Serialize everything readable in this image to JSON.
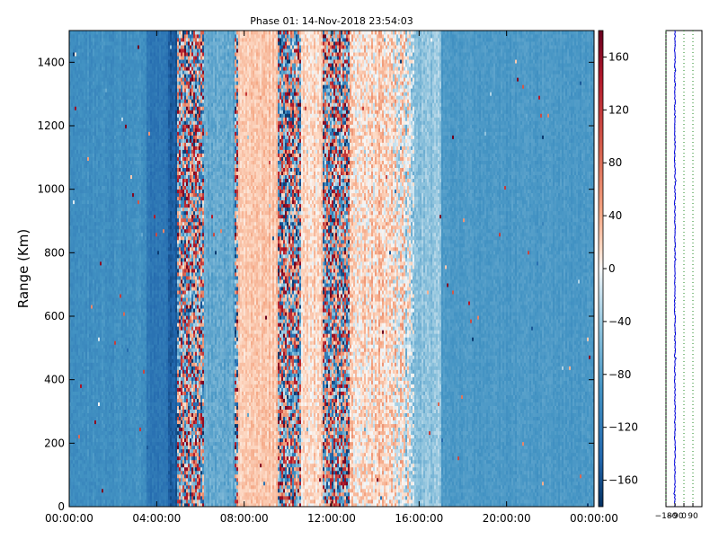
{
  "chart_data": [
    {
      "type": "heatmap",
      "title": "Phase 01: 14-Nov-2018 23:54:03",
      "xlabel": "",
      "ylabel": "Range (Km)",
      "x_ticks": [
        "00:00:00",
        "04:00:00",
        "08:00:00",
        "12:00:00",
        "16:00:00",
        "20:00:00",
        "00:00:00"
      ],
      "x_tick_hours": [
        0,
        4,
        8,
        12,
        16,
        20,
        24
      ],
      "xlim_hours": [
        0,
        24
      ],
      "y_ticks": [
        0,
        200,
        400,
        600,
        800,
        1000,
        1200,
        1400
      ],
      "ylim": [
        0,
        1500
      ],
      "colormap": "RdBu_r",
      "colorbar": {
        "ticks": [
          -160,
          -120,
          -80,
          -40,
          0,
          40,
          80,
          120,
          160
        ],
        "range": [
          -180,
          180
        ]
      },
      "phase_profile_hours": [
        {
          "from": 0,
          "to": 3.5,
          "mean": -95,
          "spread": 18
        },
        {
          "from": 3.5,
          "to": 4.5,
          "mean": -125,
          "spread": 18
        },
        {
          "from": 4.5,
          "to": 4.9,
          "mean": -150,
          "spread": 20
        },
        {
          "from": 4.9,
          "to": 6.2,
          "mean": 0,
          "spread": 175
        },
        {
          "from": 6.2,
          "to": 7.6,
          "mean": -70,
          "spread": 25
        },
        {
          "from": 7.6,
          "to": 7.75,
          "mean": 0,
          "spread": 175
        },
        {
          "from": 7.75,
          "to": 9.5,
          "mean": 25,
          "spread": 25
        },
        {
          "from": 9.5,
          "to": 10.6,
          "mean": 0,
          "spread": 175
        },
        {
          "from": 10.6,
          "to": 11.6,
          "mean": 15,
          "spread": 40
        },
        {
          "from": 11.6,
          "to": 12.8,
          "mean": 0,
          "spread": 140
        },
        {
          "from": 12.8,
          "to": 14.8,
          "mean": 15,
          "spread": 60
        },
        {
          "from": 14.8,
          "to": 15.8,
          "mean": -5,
          "spread": 90
        },
        {
          "from": 15.8,
          "to": 17.0,
          "mean": -45,
          "spread": 30
        },
        {
          "from": 17.0,
          "to": 24,
          "mean": -85,
          "spread": 14
        }
      ]
    },
    {
      "type": "line",
      "x_ticks": [
        -180,
        -90,
        0,
        90
      ],
      "xlim": [
        -180,
        180
      ],
      "ylim": [
        0,
        1500
      ],
      "mean_value": -90,
      "grid": true
    }
  ]
}
